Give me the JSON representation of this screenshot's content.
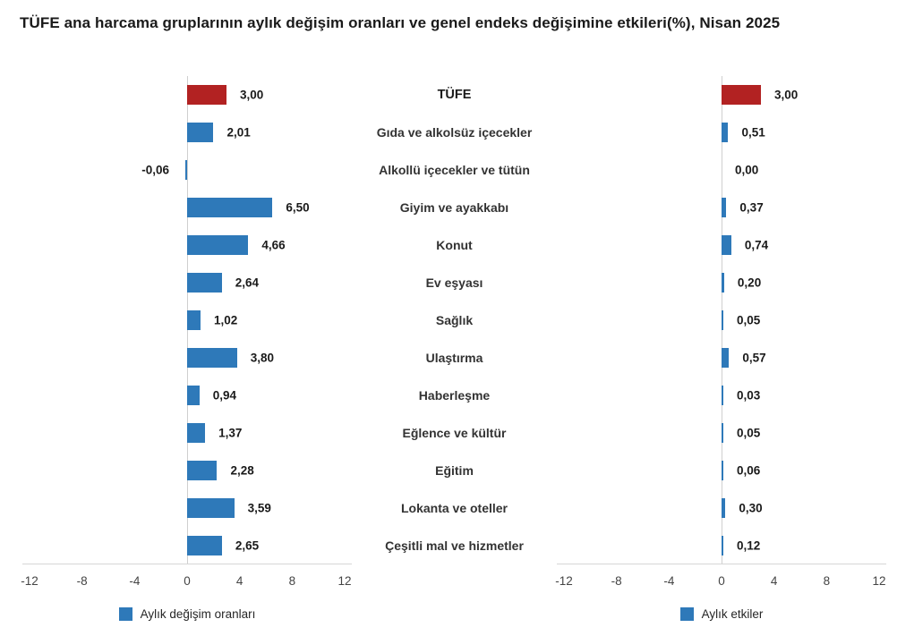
{
  "title": "TÜFE ana harcama gruplarının aylık değişim oranları ve genel endeks değişimine etkileri(%), Nisan 2025",
  "categories": [
    "TÜFE",
    "Gıda ve alkolsüz içecekler",
    "Alkollü içecekler ve tütün",
    "Giyim ve ayakkabı",
    "Konut",
    "Ev eşyası",
    "Sağlık",
    "Ulaştırma",
    "Haberleşme",
    "Eğlence ve kültür",
    "Eğitim",
    "Lokanta ve oteller",
    "Çeşitli mal ve hizmetler"
  ],
  "highlight_category": "TÜFE",
  "chart_data": [
    {
      "type": "bar",
      "orientation": "horizontal",
      "legend_label": "Aylık değişim oranları",
      "categories_ref": "categories",
      "values": [
        3.0,
        2.01,
        -0.06,
        6.5,
        4.66,
        2.64,
        1.02,
        3.8,
        0.94,
        1.37,
        2.28,
        3.59,
        2.65
      ],
      "value_labels": [
        "3,00",
        "2,01",
        "-0,06",
        "6,50",
        "4,66",
        "2,64",
        "1,02",
        "3,80",
        "0,94",
        "1,37",
        "2,28",
        "3,59",
        "2,65"
      ],
      "xlim": [
        -12,
        12
      ],
      "xtick_values": [
        -12,
        -8,
        -4,
        0,
        4,
        8,
        12
      ],
      "xtick_labels": [
        "-12",
        "-8",
        "-4",
        "0",
        "4",
        "8",
        "12"
      ],
      "grid": false,
      "legend_position": "bottom-center"
    },
    {
      "type": "bar",
      "orientation": "horizontal",
      "legend_label": "Aylık etkiler",
      "categories_ref": "categories",
      "values": [
        3.0,
        0.51,
        0.0,
        0.37,
        0.74,
        0.2,
        0.05,
        0.57,
        0.03,
        0.05,
        0.06,
        0.3,
        0.12
      ],
      "value_labels": [
        "3,00",
        "0,51",
        "0,00",
        "0,37",
        "0,74",
        "0,20",
        "0,05",
        "0,57",
        "0,03",
        "0,05",
        "0,06",
        "0,30",
        "0,12"
      ],
      "xlim": [
        -12,
        12
      ],
      "xtick_values": [
        -12,
        -8,
        -4,
        0,
        4,
        8,
        12
      ],
      "xtick_labels": [
        "-12",
        "-8",
        "-4",
        "0",
        "4",
        "8",
        "12"
      ],
      "grid": false,
      "legend_position": "bottom-center"
    }
  ],
  "colors": {
    "bar_blue": "#2E79B9",
    "bar_red": "#B22222",
    "axis_line": "#D6D6D6",
    "zero_line": "#CFCFCF",
    "tick_text": "#444444",
    "value_text": "#1A1A1A",
    "category_text": "#333333",
    "title_text": "#1A1A1A"
  }
}
